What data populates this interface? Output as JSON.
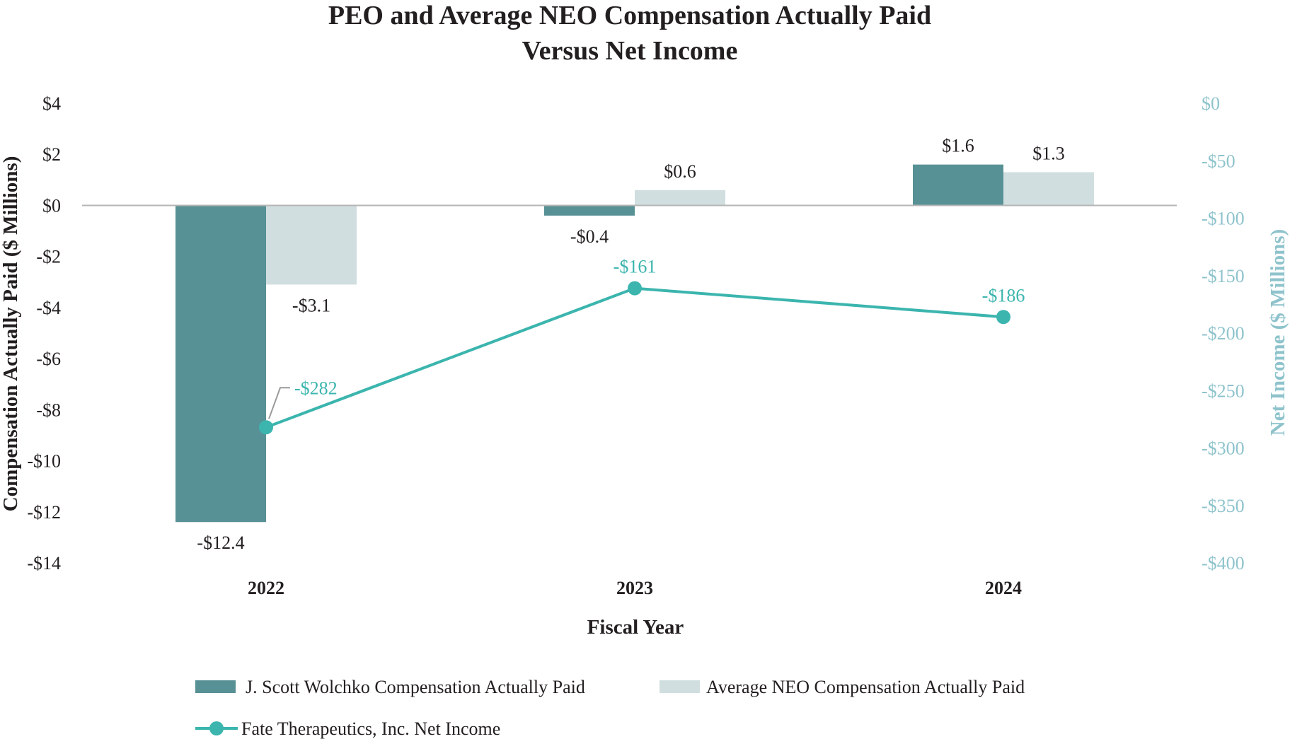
{
  "chart_data": {
    "type": "bar",
    "title": [
      "PEO and Average NEO Compensation Actually Paid",
      "Versus Net Income"
    ],
    "xlabel": "Fiscal Year",
    "ylabel": "Compensation Actually Paid ($ Millions)",
    "y2label": "Net Income ($ Millions)",
    "categories": [
      "2022",
      "2023",
      "2024"
    ],
    "ylim": [
      -14,
      4
    ],
    "y2lim": [
      -400,
      0
    ],
    "yticks": [
      4,
      2,
      0,
      -2,
      -4,
      -6,
      -8,
      -10,
      -12,
      -14
    ],
    "ytick_labels": [
      "$4",
      "$2",
      "$0",
      "-$2",
      "-$4",
      "-$6",
      "-$8",
      "-$10",
      "-$12",
      "-$14"
    ],
    "y2ticks": [
      0,
      -50,
      -100,
      -150,
      -200,
      -250,
      -300,
      -350,
      -400
    ],
    "y2tick_labels": [
      "$0",
      "-$50",
      "-$100",
      "-$150",
      "-$200",
      "-$250",
      "-$300",
      "-$350",
      "-$400"
    ],
    "series": [
      {
        "name": "J. Scott Wolchko Compensation Actually Paid",
        "type": "bar",
        "axis": "left",
        "color": "#579195",
        "values": [
          -12.4,
          -0.4,
          1.6
        ],
        "labels": [
          "-$12.4",
          "-$0.4",
          "$1.6"
        ]
      },
      {
        "name": "Average NEO Compensation Actually Paid",
        "type": "bar",
        "axis": "left",
        "color": "#d1dee0",
        "values": [
          -3.1,
          0.6,
          1.3
        ],
        "labels": [
          "-$3.1",
          "$0.6",
          "$1.3"
        ]
      },
      {
        "name": "Fate Therapeutics, Inc. Net Income",
        "type": "line",
        "axis": "right",
        "color": "#3bb5ae",
        "values": [
          -282,
          -161,
          -186
        ],
        "labels": [
          "-$282",
          "-$161",
          "-$186"
        ]
      }
    ],
    "legend_position": "bottom"
  }
}
